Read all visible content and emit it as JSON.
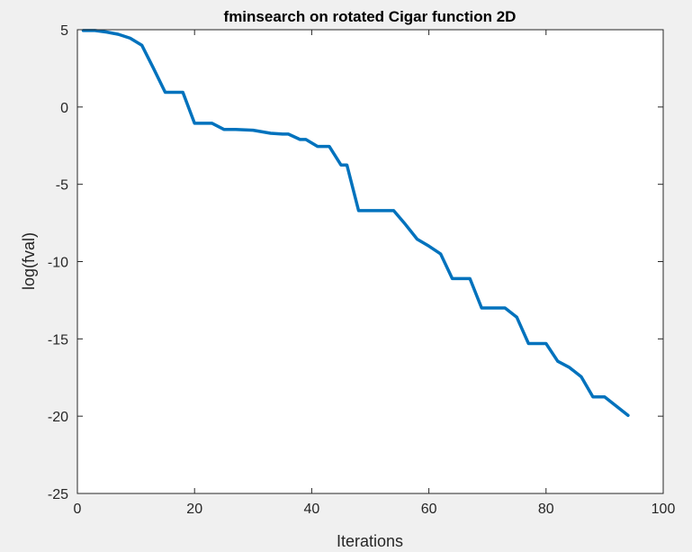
{
  "chart_data": {
    "type": "line",
    "title": "fminsearch on rotated Cigar function 2D",
    "xlabel": "Iterations",
    "ylabel": "log(fval)",
    "xlim": [
      0,
      100
    ],
    "ylim": [
      -25,
      5
    ],
    "xticks": [
      0,
      20,
      40,
      60,
      80,
      100
    ],
    "yticks": [
      5,
      0,
      -5,
      -10,
      -15,
      -20,
      -25
    ],
    "grid": false,
    "legend": "none",
    "background": "#f0f0f0",
    "plot_background": "#ffffff",
    "series": [
      {
        "color": "#0072bd",
        "x": [
          1,
          3,
          5,
          7,
          9,
          11,
          13,
          15,
          17,
          18,
          20,
          21,
          23,
          25,
          27,
          30,
          33,
          35,
          36,
          38,
          39,
          41,
          43,
          45,
          46,
          48,
          50,
          54,
          56,
          58,
          60,
          62,
          64,
          67,
          69,
          73,
          75,
          77,
          80,
          82,
          84,
          86,
          88,
          90,
          94
        ],
        "y": [
          4.95,
          4.95,
          4.85,
          4.7,
          4.45,
          4.0,
          2.5,
          0.95,
          0.95,
          0.95,
          -1.05,
          -1.05,
          -1.05,
          -1.45,
          -1.45,
          -1.5,
          -1.7,
          -1.75,
          -1.75,
          -2.1,
          -2.1,
          -2.55,
          -2.55,
          -3.75,
          -3.75,
          -6.7,
          -6.7,
          -6.7,
          -7.6,
          -8.55,
          -9.0,
          -9.5,
          -11.1,
          -11.1,
          -13.0,
          -13.0,
          -13.6,
          -15.3,
          -15.3,
          -16.45,
          -16.85,
          -17.45,
          -18.75,
          -18.75,
          -19.95
        ]
      }
    ]
  }
}
